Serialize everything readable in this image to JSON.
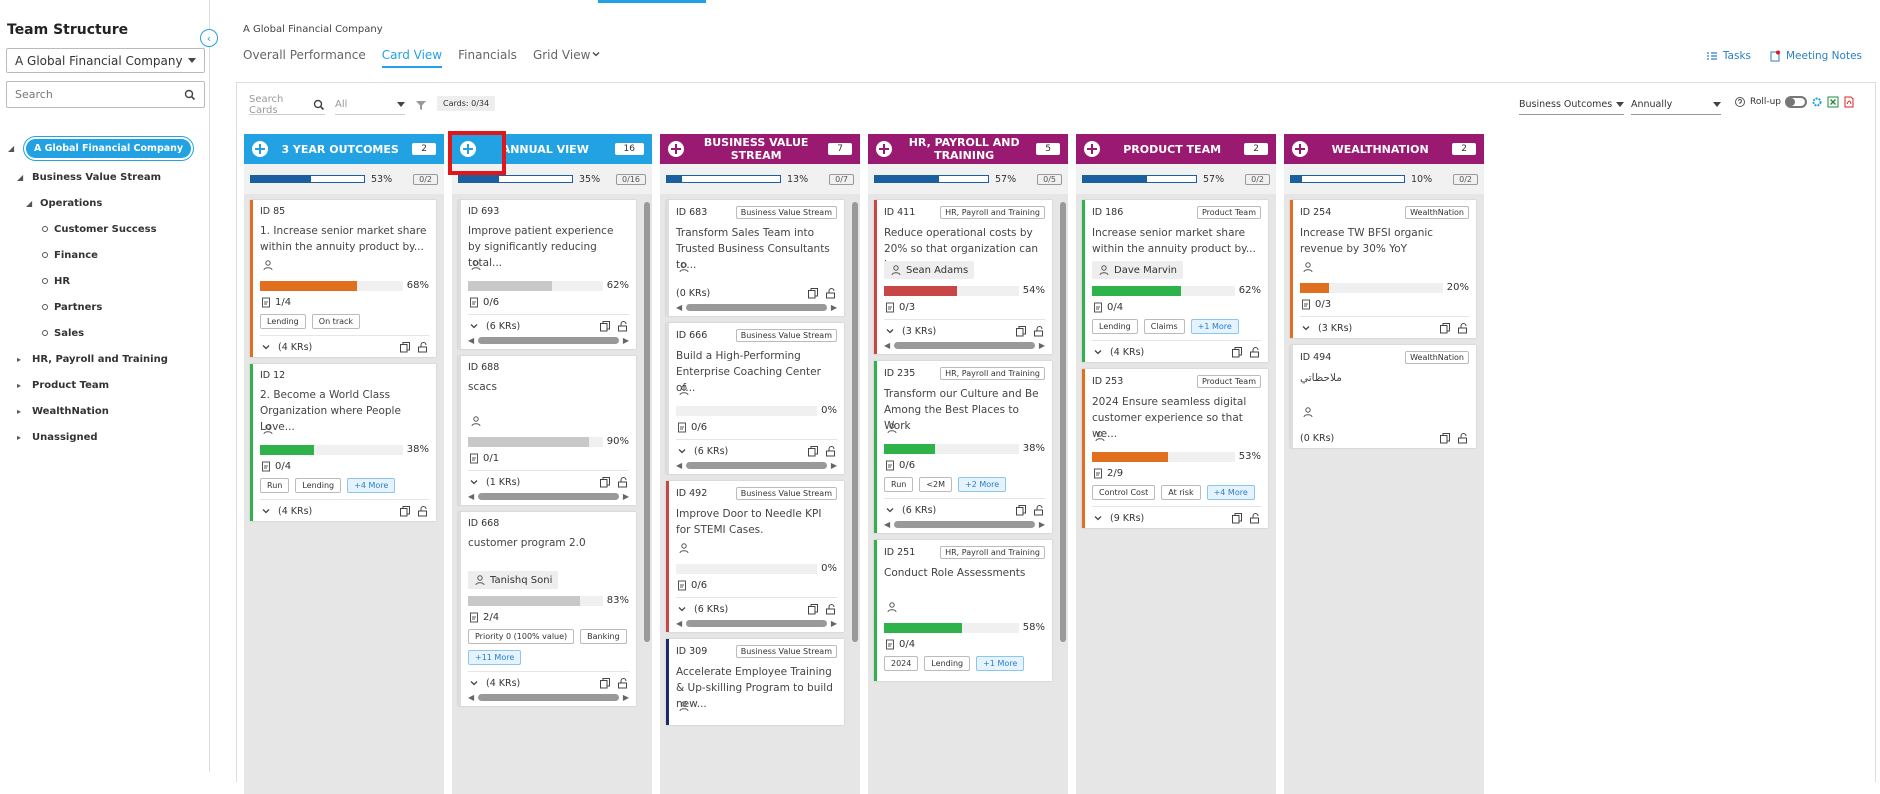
{
  "sidebar": {
    "title": "Team Structure",
    "company_select": "A Global Financial Company",
    "search_placeholder": "Search",
    "tree": [
      {
        "label": "A Global Financial Company",
        "level": 0,
        "state": "open",
        "selected": true
      },
      {
        "label": "Business Value Stream",
        "level": 1,
        "state": "open"
      },
      {
        "label": "Operations",
        "level": 2,
        "state": "open"
      },
      {
        "label": "Customer Success",
        "level": 3,
        "state": "leaf"
      },
      {
        "label": "Finance",
        "level": 3,
        "state": "leaf"
      },
      {
        "label": "HR",
        "level": 3,
        "state": "leaf"
      },
      {
        "label": "Partners",
        "level": 3,
        "state": "leaf"
      },
      {
        "label": "Sales",
        "level": 3,
        "state": "leaf"
      },
      {
        "label": "HR, Payroll and Training",
        "level": 1,
        "state": "closed"
      },
      {
        "label": "Product Team",
        "level": 1,
        "state": "closed"
      },
      {
        "label": "WealthNation",
        "level": 1,
        "state": "closed"
      },
      {
        "label": "Unassigned",
        "level": 1,
        "state": "closed"
      }
    ]
  },
  "header": {
    "company": "A Global Financial Company",
    "tabs": [
      "Overall Performance",
      "Card View",
      "Financials",
      "Grid View"
    ],
    "active_tab": 1,
    "actions": [
      "Tasks",
      "Meeting Notes"
    ]
  },
  "toolbar": {
    "search_placeholder": "Search Cards",
    "filter": "All",
    "cards_count": "Cards: 0/34",
    "outcome_select": "Business Outcomes",
    "period_select": "Annually",
    "rollup": "Roll-up"
  },
  "columns": [
    {
      "title": "3 YEAR OUTCOMES",
      "count": 2,
      "color": "#22a2e2",
      "progress": {
        "value": 53,
        "label": "53%"
      },
      "ratio": "0/2",
      "scrollable": false,
      "cards": [
        {
          "id": "ID 85",
          "title": "1. Increase senior market share within the annuity product by...",
          "border": "#e07020",
          "progress": {
            "value": 68,
            "label": "68%"
          },
          "bar_color": "#e07020",
          "tasks": "1/4",
          "chips": [
            "Lending",
            "On track"
          ],
          "krs": "(4 KRs)"
        },
        {
          "id": "ID 12",
          "title": "2. Become a World Class Organization where People Love...",
          "border": "#2db34a",
          "progress": {
            "value": 38,
            "label": "38%"
          },
          "bar_color": "#2db34a",
          "tasks": "0/4",
          "chips": [
            "Run",
            "Lending"
          ],
          "more": "+4 More",
          "krs": "(4 KRs)"
        }
      ]
    },
    {
      "title": "ANNUAL VIEW",
      "count": 16,
      "color": "#22a2e2",
      "progress": {
        "value": 35,
        "label": "35%"
      },
      "ratio": "0/16",
      "scrollable": true,
      "highlight": true,
      "cards": [
        {
          "id": "ID 693",
          "title": "Improve patient experience by significantly reducing total...",
          "border": "#dddddd",
          "progress": {
            "value": 62,
            "label": "62%"
          },
          "bar_color": "#c8c8c8",
          "tasks": "0/6",
          "krs": "(6 KRs)",
          "hscroll": true
        },
        {
          "id": "ID 688",
          "title": "scacs",
          "border": "#dddddd",
          "progress": {
            "value": 90,
            "label": "90%"
          },
          "bar_color": "#c8c8c8",
          "tasks": "0/1",
          "krs": "(1 KRs)",
          "hscroll": true
        },
        {
          "id": "ID 668",
          "title": "customer program 2.0",
          "owner": "Tanishq Soni",
          "border": "#dddddd",
          "progress": {
            "value": 83,
            "label": "83%"
          },
          "bar_color": "#c8c8c8",
          "tasks": "2/4",
          "chips": [
            "Priority 0 (100% value)",
            "Banking"
          ],
          "more": "+11 More",
          "krs": "(4 KRs)",
          "hscroll": true
        }
      ]
    },
    {
      "title": "BUSINESS VALUE STREAM",
      "count": 7,
      "color": "#9a1a72",
      "progress": {
        "value": 13,
        "label": "13%"
      },
      "ratio": "0/7",
      "scrollable": true,
      "cards": [
        {
          "id": "ID 683",
          "tag": "Business Value Stream",
          "title": "Transform Sales Team into Trusted Business Consultants to...",
          "border": "#dddddd",
          "krs": "(0 KRs)",
          "hscroll": true
        },
        {
          "id": "ID 666",
          "tag": "Business Value Stream",
          "title": "Build a High-Performing Enterprise Coaching Center of...",
          "border": "#dddddd",
          "progress": {
            "value": 0,
            "label": "0%"
          },
          "bar_color": "#c8c8c8",
          "tasks": "0/6",
          "krs": "(6 KRs)",
          "hscroll": true
        },
        {
          "id": "ID 492",
          "tag": "Business Value Stream",
          "title": "Improve Door to Needle KPI for STEMI Cases.",
          "border": "#c94646",
          "progress": {
            "value": 0,
            "label": "0%"
          },
          "bar_color": "#c8c8c8",
          "tasks": "0/6",
          "krs": "(6 KRs)",
          "hscroll": true
        },
        {
          "id": "ID 309",
          "tag": "Business Value Stream",
          "title": "Accelerate Employee Training & Up-skilling Program to build new...",
          "border": "#1c2a6b"
        }
      ]
    },
    {
      "title": "HR, PAYROLL AND TRAINING",
      "count": 5,
      "color": "#9a1a72",
      "progress": {
        "value": 57,
        "label": "57%"
      },
      "ratio": "0/5",
      "scrollable": true,
      "cards": [
        {
          "id": "ID 411",
          "tag": "HR, Payroll and Training",
          "title": "Reduce operational costs by 20% so that organization can have a...",
          "owner": "Sean Adams",
          "border": "#c94646",
          "progress": {
            "value": 54,
            "label": "54%"
          },
          "bar_color": "#c94646",
          "tasks": "0/3",
          "krs": "(3 KRs)",
          "hscroll": true
        },
        {
          "id": "ID 235",
          "tag": "HR, Payroll and Training",
          "title": "Transform our Culture and Be Among the Best Places to Work",
          "border": "#2db34a",
          "progress": {
            "value": 38,
            "label": "38%"
          },
          "bar_color": "#2db34a",
          "tasks": "0/6",
          "chips": [
            "Run",
            "<2M"
          ],
          "more": "+2 More",
          "krs": "(6 KRs)",
          "hscroll": true
        },
        {
          "id": "ID 251",
          "tag": "HR, Payroll and Training",
          "title": "Conduct Role Assessments",
          "border": "#2db34a",
          "progress": {
            "value": 58,
            "label": "58%"
          },
          "bar_color": "#2db34a",
          "tasks": "0/4",
          "chips": [
            "2024",
            "Lending"
          ],
          "more": "+1 More"
        }
      ]
    },
    {
      "title": "PRODUCT TEAM",
      "count": 2,
      "color": "#9a1a72",
      "progress": {
        "value": 57,
        "label": "57%"
      },
      "ratio": "0/2",
      "scrollable": false,
      "cards": [
        {
          "id": "ID 186",
          "tag": "Product Team",
          "title": "Increase senior market share within the annuity product by...",
          "owner": "Dave Marvin",
          "border": "#2db34a",
          "progress": {
            "value": 62,
            "label": "62%"
          },
          "bar_color": "#2db34a",
          "tasks": "0/4",
          "chips": [
            "Lending",
            "Claims"
          ],
          "more": "+1 More",
          "krs": "(4 KRs)"
        },
        {
          "id": "ID 253",
          "tag": "Product Team",
          "title": "2024 Ensure seamless digital customer experience so that we...",
          "border": "#e07020",
          "progress": {
            "value": 53,
            "label": "53%"
          },
          "bar_color": "#e07020",
          "tasks": "2/9",
          "chips": [
            "Control Cost",
            "At risk"
          ],
          "more": "+4 More",
          "krs": "(9 KRs)"
        }
      ]
    },
    {
      "title": "WEALTHNATION",
      "count": 2,
      "color": "#9a1a72",
      "progress": {
        "value": 10,
        "label": "10%"
      },
      "ratio": "0/2",
      "scrollable": false,
      "cards": [
        {
          "id": "ID 254",
          "tag": "WealthNation",
          "title": "Increase TW BFSI organic revenue by 30% YoY",
          "border": "#e07020",
          "progress": {
            "value": 20,
            "label": "20%"
          },
          "bar_color": "#e07020",
          "tasks": "0/3",
          "krs": "(3 KRs)"
        },
        {
          "id": "ID 494",
          "tag": "WealthNation",
          "title": "ملاحظاتي",
          "border": "#dddddd",
          "krs": "(0 KRs)"
        }
      ]
    }
  ]
}
